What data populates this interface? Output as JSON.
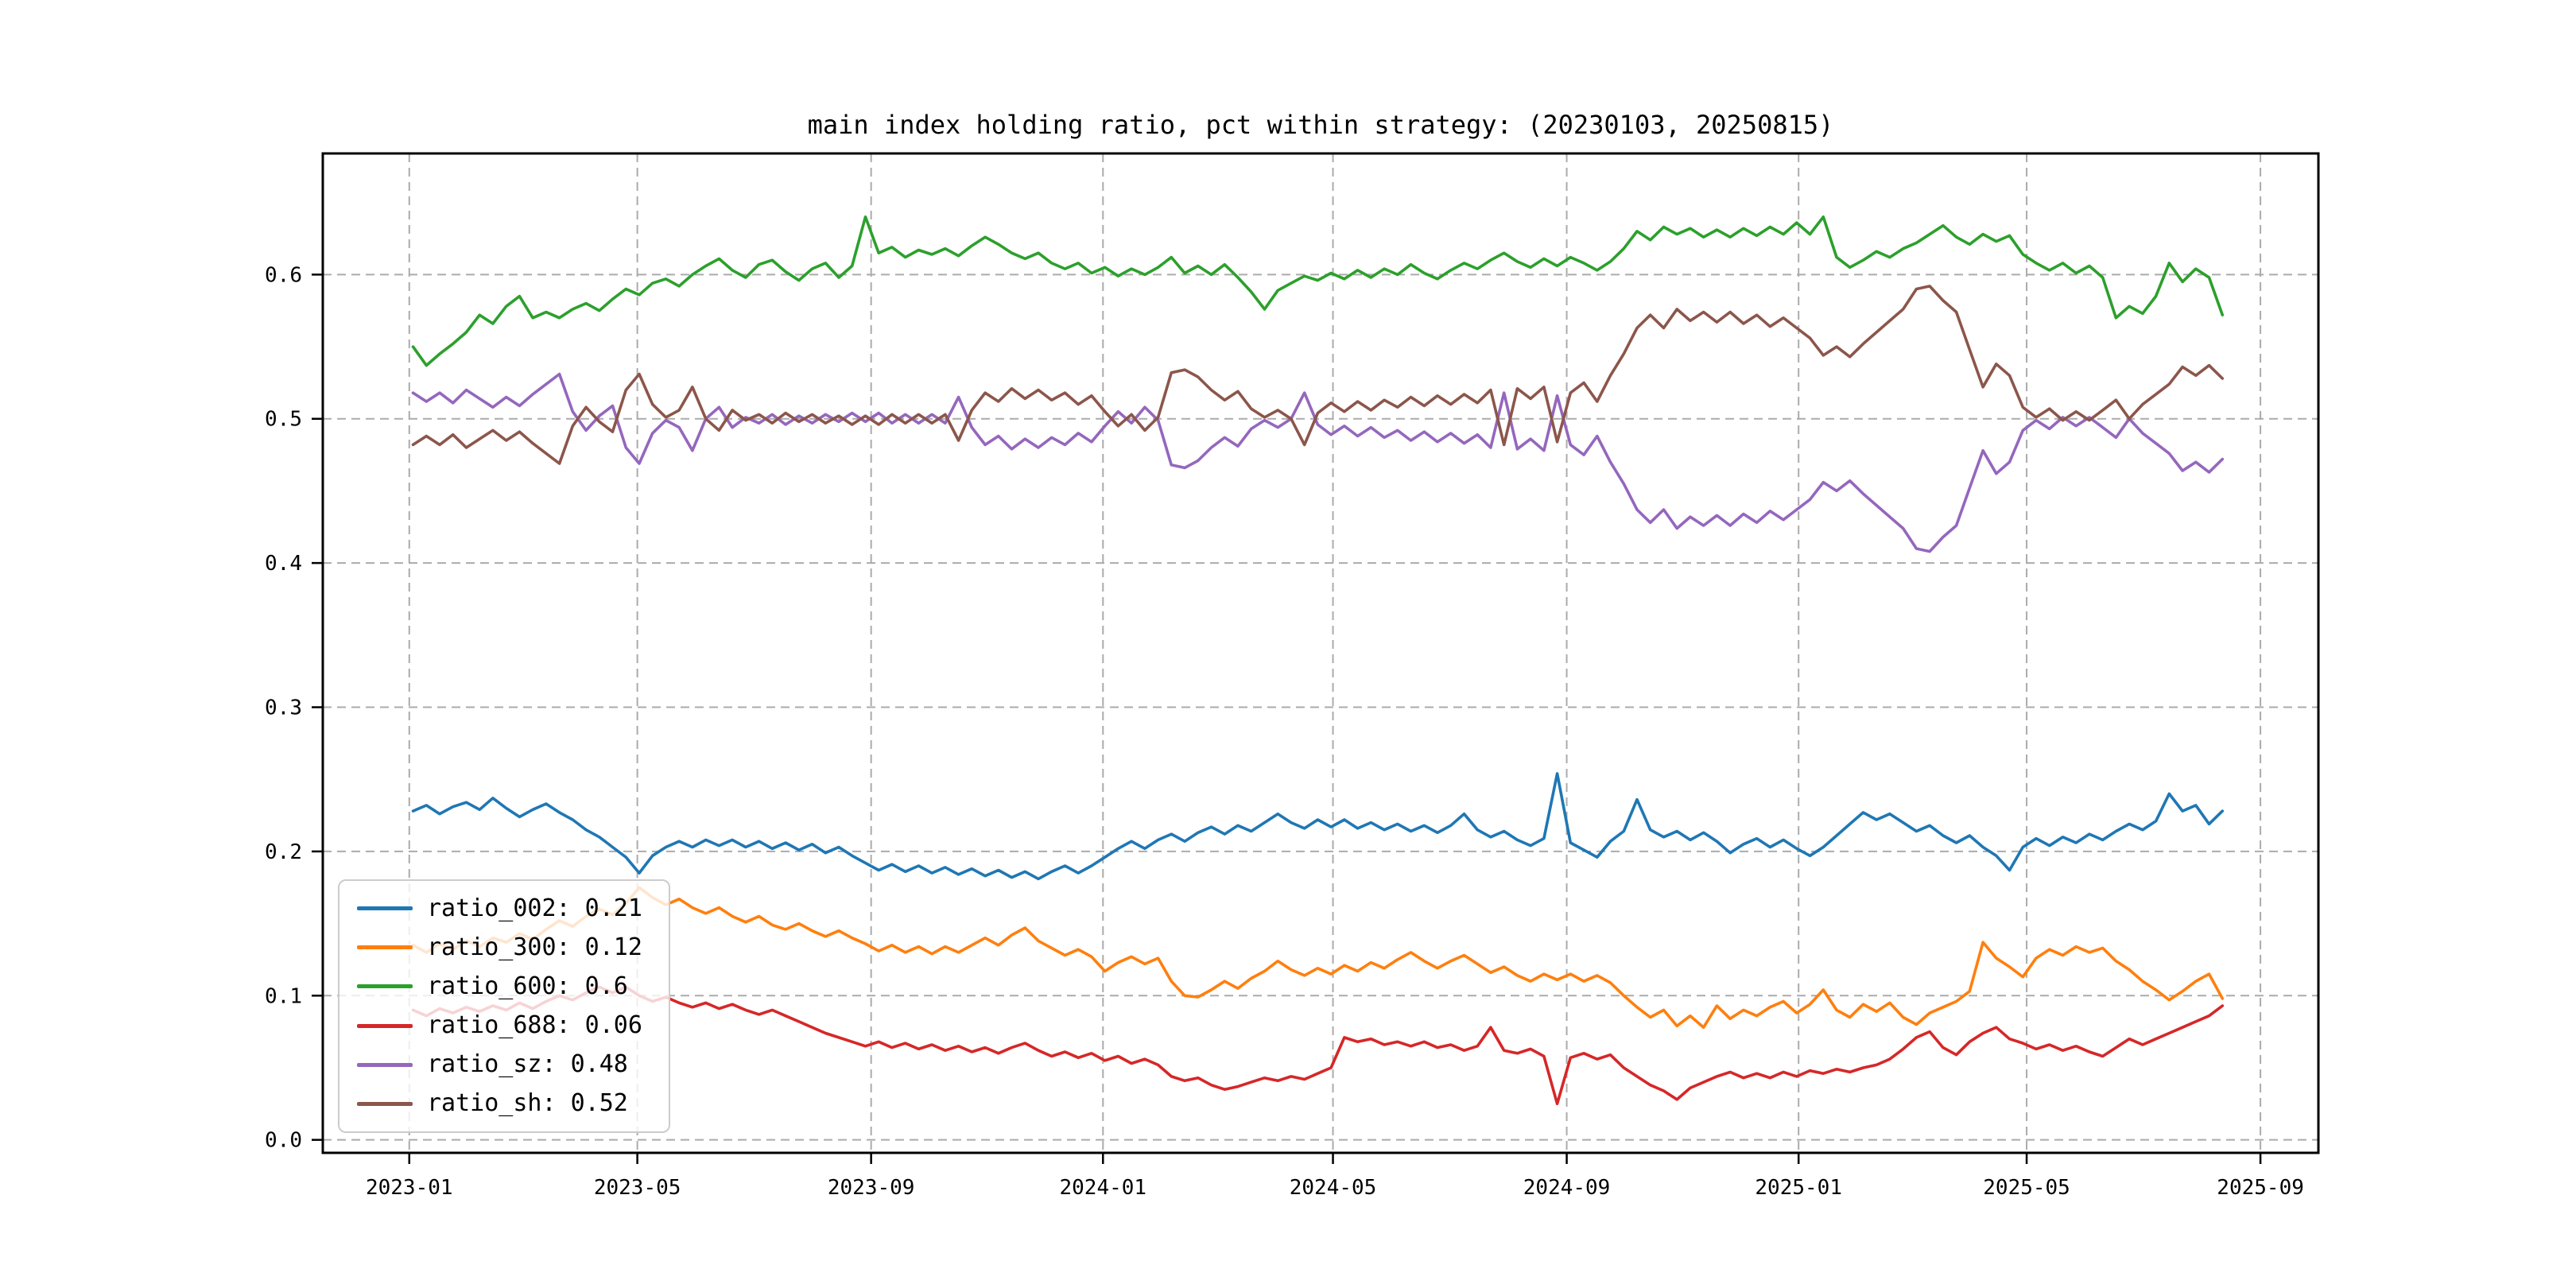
{
  "title": "main index holding ratio, pct within strategy: (20230103, 20250815)",
  "legend": {
    "position": "lower left",
    "entries": [
      {
        "name": "ratio_002",
        "label": "ratio_002: 0.21",
        "color": "#1f77b4"
      },
      {
        "name": "ratio_300",
        "label": "ratio_300: 0.12",
        "color": "#ff7f0e"
      },
      {
        "name": "ratio_600",
        "label": "ratio_600: 0.6",
        "color": "#2ca02c"
      },
      {
        "name": "ratio_688",
        "label": "ratio_688: 0.06",
        "color": "#d62728"
      },
      {
        "name": "ratio_sz",
        "label": "ratio_sz: 0.48",
        "color": "#9467bd"
      },
      {
        "name": "ratio_sh",
        "label": "ratio_sh: 0.52",
        "color": "#8c564b"
      }
    ]
  },
  "axes": {
    "grid_color": "#ababab",
    "spine_color": "#000000",
    "tick_label_color": "#000000"
  },
  "chart_data": {
    "type": "line",
    "title": "main index holding ratio, pct within strategy: (20230103, 20250815)",
    "date_range": [
      "20230103",
      "20250815"
    ],
    "x_unit": "days since 2023-01-03, sample step 7 days",
    "x_step_days": 7,
    "xlim_days": [
      -47.5,
      1002.5
    ],
    "ylim": [
      -0.009,
      0.684
    ],
    "grid": true,
    "legend_position": "lower left",
    "x_ticks": [
      {
        "t": -2,
        "label": "2023-01"
      },
      {
        "t": 118,
        "label": "2023-05"
      },
      {
        "t": 241,
        "label": "2023-09"
      },
      {
        "t": 363,
        "label": "2024-01"
      },
      {
        "t": 484,
        "label": "2024-05"
      },
      {
        "t": 607,
        "label": "2024-09"
      },
      {
        "t": 729,
        "label": "2025-01"
      },
      {
        "t": 849,
        "label": "2025-05"
      },
      {
        "t": 972,
        "label": "2025-09"
      }
    ],
    "y_ticks": [
      {
        "v": 0.0,
        "label": "0.0"
      },
      {
        "v": 0.1,
        "label": "0.1"
      },
      {
        "v": 0.2,
        "label": "0.2"
      },
      {
        "v": 0.3,
        "label": "0.3"
      },
      {
        "v": 0.4,
        "label": "0.4"
      },
      {
        "v": 0.5,
        "label": "0.5"
      },
      {
        "v": 0.6,
        "label": "0.6"
      }
    ],
    "series": [
      {
        "name": "ratio_002",
        "legend_label": "ratio_002: 0.21",
        "mean": 0.21,
        "color": "#1f77b4",
        "values": [
          0.228,
          0.232,
          0.226,
          0.231,
          0.234,
          0.229,
          0.237,
          0.23,
          0.224,
          0.229,
          0.233,
          0.227,
          0.222,
          0.215,
          0.21,
          0.203,
          0.196,
          0.185,
          0.197,
          0.203,
          0.207,
          0.203,
          0.208,
          0.204,
          0.208,
          0.203,
          0.207,
          0.202,
          0.206,
          0.201,
          0.205,
          0.199,
          0.203,
          0.197,
          0.192,
          0.187,
          0.191,
          0.186,
          0.19,
          0.185,
          0.189,
          0.184,
          0.188,
          0.183,
          0.187,
          0.182,
          0.186,
          0.181,
          0.186,
          0.19,
          0.185,
          0.19,
          0.196,
          0.202,
          0.207,
          0.202,
          0.208,
          0.212,
          0.207,
          0.213,
          0.217,
          0.212,
          0.218,
          0.214,
          0.22,
          0.226,
          0.22,
          0.216,
          0.222,
          0.217,
          0.222,
          0.216,
          0.22,
          0.215,
          0.219,
          0.214,
          0.218,
          0.213,
          0.218,
          0.226,
          0.215,
          0.21,
          0.214,
          0.208,
          0.204,
          0.209,
          0.254,
          0.206,
          0.201,
          0.196,
          0.207,
          0.214,
          0.236,
          0.215,
          0.21,
          0.214,
          0.208,
          0.213,
          0.207,
          0.199,
          0.205,
          0.209,
          0.203,
          0.208,
          0.202,
          0.197,
          0.203,
          0.211,
          0.219,
          0.227,
          0.222,
          0.226,
          0.22,
          0.214,
          0.218,
          0.211,
          0.206,
          0.211,
          0.203,
          0.197,
          0.187,
          0.203,
          0.209,
          0.204,
          0.21,
          0.206,
          0.212,
          0.208,
          0.214,
          0.219,
          0.215,
          0.221,
          0.24,
          0.228,
          0.232,
          0.219,
          0.228
        ]
      },
      {
        "name": "ratio_300",
        "legend_label": "ratio_300: 0.12",
        "mean": 0.12,
        "color": "#ff7f0e",
        "values": [
          0.135,
          0.13,
          0.136,
          0.132,
          0.138,
          0.134,
          0.14,
          0.137,
          0.143,
          0.139,
          0.146,
          0.152,
          0.148,
          0.155,
          0.16,
          0.156,
          0.164,
          0.175,
          0.168,
          0.163,
          0.167,
          0.161,
          0.157,
          0.161,
          0.155,
          0.151,
          0.155,
          0.149,
          0.146,
          0.15,
          0.145,
          0.141,
          0.145,
          0.14,
          0.136,
          0.131,
          0.135,
          0.13,
          0.134,
          0.129,
          0.134,
          0.13,
          0.135,
          0.14,
          0.135,
          0.142,
          0.147,
          0.138,
          0.133,
          0.128,
          0.132,
          0.127,
          0.117,
          0.123,
          0.127,
          0.122,
          0.126,
          0.11,
          0.1,
          0.099,
          0.104,
          0.11,
          0.105,
          0.112,
          0.117,
          0.124,
          0.118,
          0.114,
          0.119,
          0.115,
          0.121,
          0.117,
          0.123,
          0.119,
          0.125,
          0.13,
          0.124,
          0.119,
          0.124,
          0.128,
          0.122,
          0.116,
          0.12,
          0.114,
          0.11,
          0.115,
          0.111,
          0.115,
          0.11,
          0.114,
          0.109,
          0.1,
          0.092,
          0.085,
          0.09,
          0.079,
          0.086,
          0.078,
          0.093,
          0.084,
          0.09,
          0.086,
          0.092,
          0.096,
          0.088,
          0.094,
          0.104,
          0.09,
          0.085,
          0.094,
          0.089,
          0.095,
          0.085,
          0.08,
          0.088,
          0.092,
          0.096,
          0.103,
          0.137,
          0.126,
          0.12,
          0.113,
          0.126,
          0.132,
          0.128,
          0.134,
          0.13,
          0.133,
          0.124,
          0.118,
          0.11,
          0.104,
          0.097,
          0.103,
          0.11,
          0.115,
          0.098
        ]
      },
      {
        "name": "ratio_600",
        "legend_label": "ratio_600: 0.6",
        "mean": 0.6,
        "color": "#2ca02c",
        "values": [
          0.55,
          0.537,
          0.545,
          0.552,
          0.56,
          0.572,
          0.566,
          0.578,
          0.585,
          0.57,
          0.574,
          0.57,
          0.576,
          0.58,
          0.575,
          0.583,
          0.59,
          0.586,
          0.594,
          0.597,
          0.592,
          0.6,
          0.606,
          0.611,
          0.603,
          0.598,
          0.607,
          0.61,
          0.602,
          0.596,
          0.604,
          0.608,
          0.598,
          0.606,
          0.64,
          0.615,
          0.619,
          0.612,
          0.617,
          0.614,
          0.618,
          0.613,
          0.62,
          0.626,
          0.621,
          0.615,
          0.611,
          0.615,
          0.608,
          0.604,
          0.608,
          0.601,
          0.605,
          0.599,
          0.604,
          0.6,
          0.605,
          0.612,
          0.601,
          0.606,
          0.6,
          0.607,
          0.598,
          0.588,
          0.576,
          0.589,
          0.594,
          0.599,
          0.596,
          0.601,
          0.597,
          0.603,
          0.598,
          0.604,
          0.6,
          0.607,
          0.601,
          0.597,
          0.603,
          0.608,
          0.604,
          0.61,
          0.615,
          0.609,
          0.605,
          0.611,
          0.606,
          0.612,
          0.608,
          0.603,
          0.609,
          0.618,
          0.63,
          0.624,
          0.633,
          0.628,
          0.632,
          0.626,
          0.631,
          0.626,
          0.632,
          0.627,
          0.633,
          0.628,
          0.636,
          0.628,
          0.64,
          0.612,
          0.605,
          0.61,
          0.616,
          0.612,
          0.618,
          0.622,
          0.628,
          0.634,
          0.626,
          0.621,
          0.628,
          0.623,
          0.627,
          0.614,
          0.608,
          0.603,
          0.608,
          0.601,
          0.606,
          0.598,
          0.57,
          0.578,
          0.573,
          0.585,
          0.608,
          0.595,
          0.604,
          0.598,
          0.572
        ]
      },
      {
        "name": "ratio_688",
        "legend_label": "ratio_688: 0.06",
        "mean": 0.06,
        "color": "#d62728",
        "values": [
          0.09,
          0.086,
          0.091,
          0.088,
          0.092,
          0.089,
          0.093,
          0.09,
          0.095,
          0.091,
          0.096,
          0.1,
          0.097,
          0.102,
          0.106,
          0.102,
          0.106,
          0.1,
          0.096,
          0.099,
          0.095,
          0.092,
          0.095,
          0.091,
          0.094,
          0.09,
          0.087,
          0.09,
          0.086,
          0.082,
          0.078,
          0.074,
          0.071,
          0.068,
          0.065,
          0.068,
          0.064,
          0.067,
          0.063,
          0.066,
          0.062,
          0.065,
          0.061,
          0.064,
          0.06,
          0.064,
          0.067,
          0.062,
          0.058,
          0.061,
          0.057,
          0.06,
          0.055,
          0.058,
          0.053,
          0.056,
          0.052,
          0.044,
          0.041,
          0.043,
          0.038,
          0.035,
          0.037,
          0.04,
          0.043,
          0.041,
          0.044,
          0.042,
          0.046,
          0.05,
          0.071,
          0.068,
          0.07,
          0.066,
          0.068,
          0.065,
          0.068,
          0.064,
          0.066,
          0.062,
          0.065,
          0.078,
          0.062,
          0.06,
          0.063,
          0.058,
          0.025,
          0.057,
          0.06,
          0.056,
          0.059,
          0.05,
          0.044,
          0.038,
          0.034,
          0.028,
          0.036,
          0.04,
          0.044,
          0.047,
          0.043,
          0.046,
          0.043,
          0.047,
          0.044,
          0.048,
          0.046,
          0.049,
          0.047,
          0.05,
          0.052,
          0.056,
          0.063,
          0.071,
          0.075,
          0.064,
          0.059,
          0.068,
          0.074,
          0.078,
          0.07,
          0.067,
          0.063,
          0.066,
          0.062,
          0.065,
          0.061,
          0.058,
          0.064,
          0.07,
          0.066,
          0.07,
          0.074,
          0.078,
          0.082,
          0.086,
          0.093
        ]
      },
      {
        "name": "ratio_sz",
        "legend_label": "ratio_sz: 0.48",
        "mean": 0.48,
        "color": "#9467bd",
        "values": [
          0.518,
          0.512,
          0.518,
          0.511,
          0.52,
          0.514,
          0.508,
          0.515,
          0.509,
          0.517,
          0.524,
          0.531,
          0.505,
          0.492,
          0.502,
          0.509,
          0.48,
          0.469,
          0.49,
          0.499,
          0.494,
          0.478,
          0.5,
          0.508,
          0.494,
          0.501,
          0.497,
          0.503,
          0.496,
          0.502,
          0.497,
          0.503,
          0.498,
          0.504,
          0.498,
          0.504,
          0.497,
          0.503,
          0.497,
          0.503,
          0.497,
          0.515,
          0.494,
          0.482,
          0.488,
          0.479,
          0.486,
          0.48,
          0.487,
          0.482,
          0.49,
          0.484,
          0.495,
          0.505,
          0.497,
          0.508,
          0.499,
          0.468,
          0.466,
          0.471,
          0.48,
          0.487,
          0.481,
          0.493,
          0.499,
          0.494,
          0.5,
          0.518,
          0.496,
          0.489,
          0.495,
          0.488,
          0.494,
          0.487,
          0.492,
          0.485,
          0.491,
          0.484,
          0.49,
          0.483,
          0.489,
          0.48,
          0.518,
          0.479,
          0.486,
          0.478,
          0.516,
          0.482,
          0.475,
          0.488,
          0.47,
          0.455,
          0.437,
          0.428,
          0.437,
          0.424,
          0.432,
          0.426,
          0.433,
          0.426,
          0.434,
          0.428,
          0.436,
          0.43,
          0.437,
          0.444,
          0.456,
          0.45,
          0.457,
          0.448,
          0.44,
          0.432,
          0.424,
          0.41,
          0.408,
          0.418,
          0.426,
          0.452,
          0.478,
          0.462,
          0.47,
          0.492,
          0.499,
          0.493,
          0.501,
          0.495,
          0.501,
          0.494,
          0.487,
          0.5,
          0.49,
          0.483,
          0.476,
          0.464,
          0.47,
          0.463,
          0.472
        ]
      },
      {
        "name": "ratio_sh",
        "legend_label": "ratio_sh: 0.52",
        "mean": 0.52,
        "color": "#8c564b",
        "values": [
          0.482,
          0.488,
          0.482,
          0.489,
          0.48,
          0.486,
          0.492,
          0.485,
          0.491,
          0.483,
          0.476,
          0.469,
          0.495,
          0.508,
          0.498,
          0.491,
          0.52,
          0.531,
          0.51,
          0.501,
          0.506,
          0.522,
          0.5,
          0.492,
          0.506,
          0.499,
          0.503,
          0.497,
          0.504,
          0.498,
          0.503,
          0.497,
          0.502,
          0.496,
          0.502,
          0.496,
          0.503,
          0.497,
          0.503,
          0.497,
          0.503,
          0.485,
          0.506,
          0.518,
          0.512,
          0.521,
          0.514,
          0.52,
          0.513,
          0.518,
          0.51,
          0.516,
          0.505,
          0.495,
          0.503,
          0.492,
          0.501,
          0.532,
          0.534,
          0.529,
          0.52,
          0.513,
          0.519,
          0.507,
          0.501,
          0.506,
          0.5,
          0.482,
          0.504,
          0.511,
          0.505,
          0.512,
          0.506,
          0.513,
          0.508,
          0.515,
          0.509,
          0.516,
          0.51,
          0.517,
          0.511,
          0.52,
          0.482,
          0.521,
          0.514,
          0.522,
          0.484,
          0.518,
          0.525,
          0.512,
          0.53,
          0.545,
          0.563,
          0.572,
          0.563,
          0.576,
          0.568,
          0.574,
          0.567,
          0.574,
          0.566,
          0.572,
          0.564,
          0.57,
          0.563,
          0.556,
          0.544,
          0.55,
          0.543,
          0.552,
          0.56,
          0.568,
          0.576,
          0.59,
          0.592,
          0.582,
          0.574,
          0.548,
          0.522,
          0.538,
          0.53,
          0.508,
          0.501,
          0.507,
          0.499,
          0.505,
          0.499,
          0.506,
          0.513,
          0.5,
          0.51,
          0.517,
          0.524,
          0.536,
          0.53,
          0.537,
          0.528
        ]
      }
    ]
  }
}
